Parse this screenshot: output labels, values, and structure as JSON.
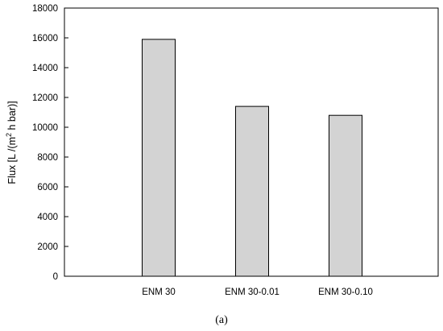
{
  "chart_data": {
    "type": "bar",
    "categories": [
      "ENM 30",
      "ENM 30-0.01",
      "ENM 30-0.10"
    ],
    "values": [
      15900,
      11400,
      10800
    ],
    "ylabel_main": "Flux [L /(m",
    "ylabel_sup": "2",
    "ylabel_tail": " h bar)]",
    "xlabel": "",
    "ylim": [
      0,
      18000
    ],
    "yticks": [
      0,
      2000,
      4000,
      6000,
      8000,
      10000,
      12000,
      14000,
      16000,
      18000
    ],
    "grid": false,
    "bar_color": "#d3d3d3",
    "bar_edge_color": "#000000"
  },
  "panel_label": "(a)"
}
